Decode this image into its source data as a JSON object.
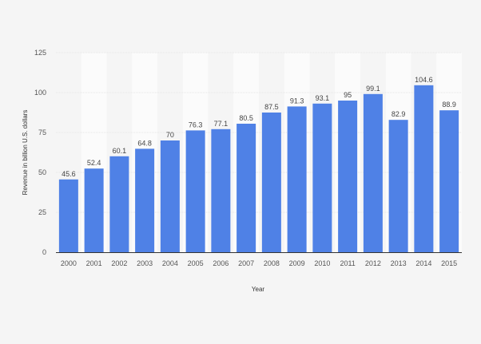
{
  "chart_data": {
    "type": "bar",
    "categories": [
      "2000",
      "2001",
      "2002",
      "2003",
      "2004",
      "2005",
      "2006",
      "2007",
      "2008",
      "2009",
      "2010",
      "2011",
      "2012",
      "2013",
      "2014",
      "2015"
    ],
    "values": [
      45.6,
      52.4,
      60.1,
      64.8,
      70,
      76.3,
      77.1,
      80.5,
      87.5,
      91.3,
      93.1,
      95,
      99.1,
      82.9,
      104.6,
      88.9
    ],
    "value_labels": [
      "45.6",
      "52.4",
      "60.1",
      "64.8",
      "70",
      "76.3",
      "77.1",
      "80.5",
      "87.5",
      "91.3",
      "93.1",
      "95",
      "99.1",
      "82.9",
      "104.6",
      "88.9"
    ],
    "xlabel": "Year",
    "ylabel": "Revenue in billion U.S. dollars",
    "ylim": [
      0,
      125
    ],
    "yticks": [
      0,
      25,
      50,
      75,
      100,
      125
    ],
    "ytick_labels": [
      "0",
      "25",
      "50",
      "75",
      "100",
      "125"
    ],
    "grid": true,
    "bar_color": "#4f81e6",
    "alt_column_shade": "#fbfbfb"
  }
}
